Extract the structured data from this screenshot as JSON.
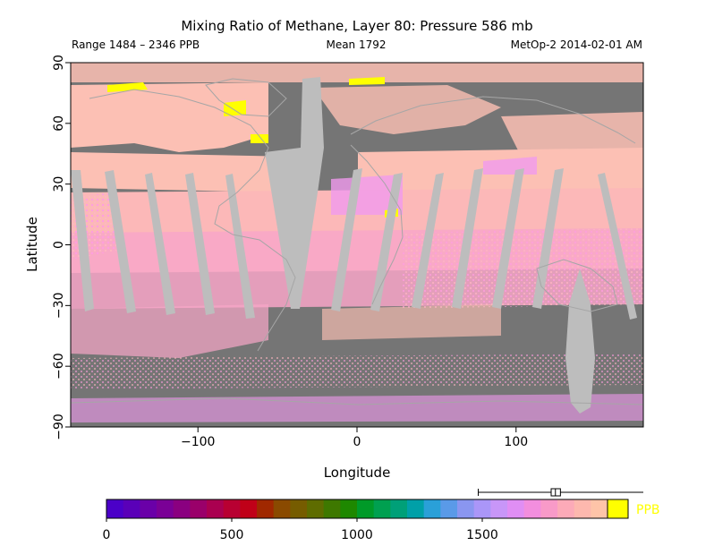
{
  "chart_data": {
    "type": "heatmap",
    "title": "Mixing Ratio of Methane, Layer 80: Pressure 586 mb",
    "range_text": "Range 1484 – 2346 PPB",
    "mean_text": "Mean 1792",
    "source_text": "MetOp-2 2014-02-01 AM",
    "xlabel": "Longitude",
    "ylabel": "Latitude",
    "xlim": [
      -180,
      180
    ],
    "ylim": [
      -90,
      90
    ],
    "x_ticks": [
      -100,
      0,
      100
    ],
    "y_ticks": [
      90,
      60,
      30,
      0,
      -30,
      -60,
      -90
    ],
    "colorbar": {
      "unit": "PPB",
      "range": [
        0,
        2000
      ],
      "ticks": [
        0,
        500,
        1000,
        1500
      ],
      "over_color": "#ffff00",
      "colors": [
        "#4b00c8",
        "#5a00b8",
        "#6a00a8",
        "#7a0096",
        "#8a0080",
        "#9a006a",
        "#aa0050",
        "#b80032",
        "#c00018",
        "#a02800",
        "#8a4a00",
        "#765c00",
        "#5e6c00",
        "#3e7800",
        "#1e8800",
        "#009a28",
        "#00a050",
        "#00a078",
        "#00a0a8",
        "#2aa0d8",
        "#5a9ae8",
        "#8a96f0",
        "#aa96f8",
        "#c896f8",
        "#e08ef4",
        "#f28ede",
        "#f89ac8",
        "#fcaab8",
        "#fdb8ae",
        "#fec4a8"
      ],
      "boxplot": {
        "min": 1484,
        "q1": 1775,
        "median": 1792,
        "q3": 1812,
        "max": 2346
      }
    }
  }
}
